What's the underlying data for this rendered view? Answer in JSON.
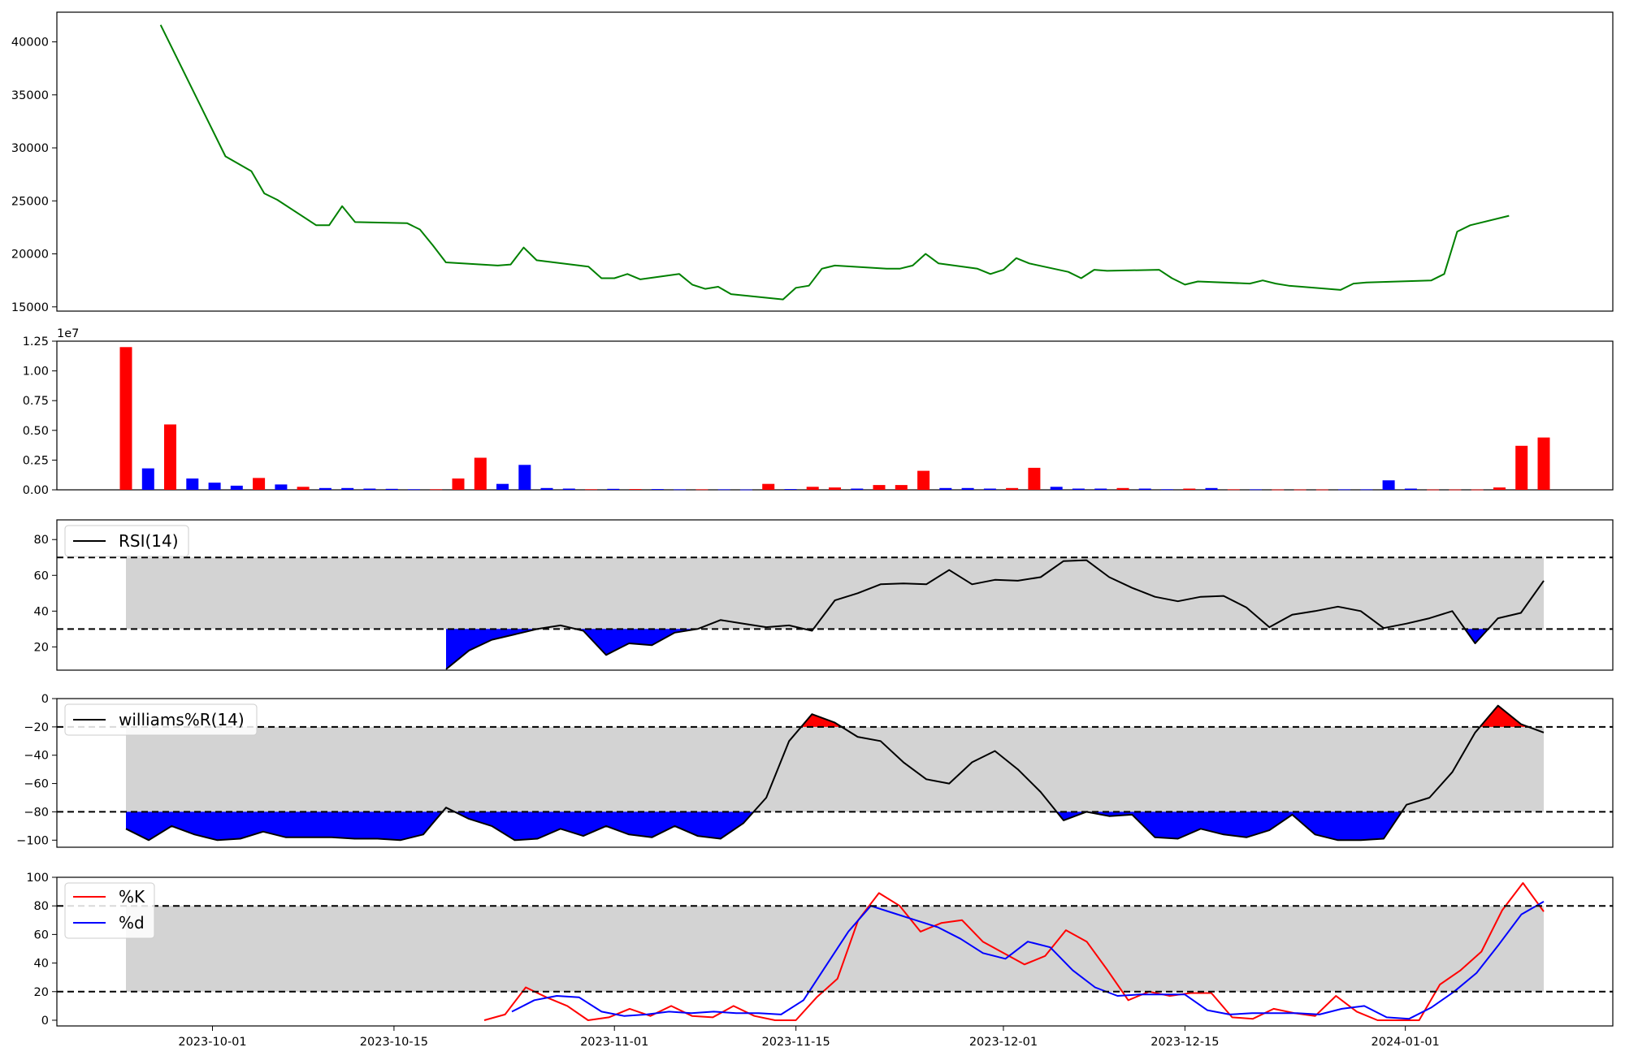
{
  "chart_data": [
    {
      "type": "line",
      "panel": "price",
      "ylim": [
        14600,
        42800
      ],
      "yticks": [
        "15000",
        "20000",
        "25000",
        "30000",
        "35000",
        "40000"
      ],
      "ytick_values": [
        15000,
        20000,
        25000,
        30000,
        35000,
        40000
      ],
      "grid": false,
      "colors": {
        "line": "#008000"
      },
      "x": [
        "2023-09-27",
        "2023-10-02",
        "2023-10-04",
        "2023-10-05",
        "2023-10-06",
        "2023-10-09",
        "2023-10-10",
        "2023-10-11",
        "2023-10-12",
        "2023-10-16",
        "2023-10-17",
        "2023-10-18",
        "2023-10-19",
        "2023-10-23",
        "2023-10-24",
        "2023-10-25",
        "2023-10-26",
        "2023-10-30",
        "2023-10-31",
        "2023-11-01",
        "2023-11-02",
        "2023-11-03",
        "2023-11-06",
        "2023-11-07",
        "2023-11-08",
        "2023-11-09",
        "2023-11-10",
        "2023-11-14",
        "2023-11-15",
        "2023-11-16",
        "2023-11-17",
        "2023-11-18",
        "2023-11-22",
        "2023-11-23",
        "2023-11-24",
        "2023-11-25",
        "2023-11-26",
        "2023-11-29",
        "2023-11-30",
        "2023-12-01",
        "2023-12-02",
        "2023-12-03",
        "2023-12-06",
        "2023-12-07",
        "2023-12-08",
        "2023-12-09",
        "2023-12-13",
        "2023-12-14",
        "2023-12-15",
        "2023-12-16",
        "2023-12-20",
        "2023-12-21",
        "2023-12-22",
        "2023-12-23",
        "2023-12-24",
        "2023-12-27",
        "2023-12-28",
        "2023-12-29",
        "2024-01-03",
        "2024-01-04",
        "2024-01-05",
        "2024-01-06",
        "2024-01-09"
      ],
      "series": [
        {
          "values": [
            41600,
            29200,
            27800,
            25700,
            25100,
            22700,
            22700,
            24500,
            23000,
            22900,
            22300,
            20800,
            19200,
            18900,
            19000,
            20600,
            19400,
            18800,
            17700,
            17700,
            18100,
            17600,
            18100,
            17100,
            16700,
            16900,
            16200,
            15700,
            16800,
            17000,
            18600,
            18900,
            18600,
            18600,
            18900,
            20000,
            19100,
            18600,
            18100,
            18500,
            19600,
            19100,
            18300,
            17700,
            18500,
            18400,
            18500,
            17700,
            17100,
            17400,
            17200,
            17500,
            17200,
            17000,
            16900,
            16600,
            17200,
            17300,
            17500,
            18100,
            22100,
            22700,
            23600
          ]
        }
      ]
    },
    {
      "type": "bar",
      "panel": "volume",
      "offset_label": "1e7",
      "ylim": [
        0,
        1.25
      ],
      "yticks": [
        "0.00",
        "0.25",
        "0.50",
        "0.75",
        "1.00",
        "1.25"
      ],
      "ytick_values": [
        0,
        0.25,
        0.5,
        0.75,
        1.0,
        1.25
      ],
      "colors": {
        "up": "#ff0000",
        "down": "#0000ff"
      },
      "bars": [
        {
          "x": "2023-09-27",
          "v": 1.2,
          "c": "red"
        },
        {
          "x": "2023-09-28",
          "v": 0.18,
          "c": "blue"
        },
        {
          "x": "2023-09-29",
          "v": 0.55,
          "c": "red"
        },
        {
          "x": "2023-09-30",
          "v": 0.095,
          "c": "blue"
        },
        {
          "x": "2023-10-01",
          "v": 0.06,
          "c": "blue"
        },
        {
          "x": "2023-10-02",
          "v": 0.035,
          "c": "blue"
        },
        {
          "x": "2023-10-03",
          "v": 0.1,
          "c": "red"
        },
        {
          "x": "2023-10-04",
          "v": 0.045,
          "c": "blue"
        },
        {
          "x": "2023-10-05",
          "v": 0.025,
          "c": "red"
        },
        {
          "x": "2023-10-06",
          "v": 0.015,
          "c": "blue"
        },
        {
          "x": "2023-10-07",
          "v": 0.015,
          "c": "blue"
        },
        {
          "x": "2023-10-08",
          "v": 0.01,
          "c": "blue"
        },
        {
          "x": "2023-10-09",
          "v": 0.008,
          "c": "blue"
        },
        {
          "x": "2023-10-10",
          "v": 0.005,
          "c": "blue"
        },
        {
          "x": "2023-10-11",
          "v": 0.005,
          "c": "red"
        },
        {
          "x": "2023-10-12",
          "v": 0.095,
          "c": "red"
        },
        {
          "x": "2023-10-13",
          "v": 0.27,
          "c": "red"
        },
        {
          "x": "2023-10-14",
          "v": 0.05,
          "c": "blue"
        },
        {
          "x": "2023-10-15",
          "v": 0.21,
          "c": "blue"
        },
        {
          "x": "2023-10-16",
          "v": 0.015,
          "c": "blue"
        },
        {
          "x": "2023-10-17",
          "v": 0.01,
          "c": "blue"
        },
        {
          "x": "2023-10-18",
          "v": 0.005,
          "c": "red"
        },
        {
          "x": "2023-10-19",
          "v": 0.008,
          "c": "blue"
        },
        {
          "x": "2023-10-20",
          "v": 0.006,
          "c": "red"
        },
        {
          "x": "2023-10-21",
          "v": 0.006,
          "c": "blue"
        },
        {
          "x": "2023-10-22",
          "v": 0.004,
          "c": "blue"
        },
        {
          "x": "2023-10-23",
          "v": 0.004,
          "c": "red"
        },
        {
          "x": "2023-10-24",
          "v": 0.004,
          "c": "blue"
        },
        {
          "x": "2023-10-25",
          "v": 0.003,
          "c": "blue"
        },
        {
          "x": "2023-10-26",
          "v": 0.05,
          "c": "red"
        },
        {
          "x": "2023-10-27",
          "v": 0.006,
          "c": "blue"
        },
        {
          "x": "2023-10-28",
          "v": 0.025,
          "c": "red"
        },
        {
          "x": "2023-10-29",
          "v": 0.02,
          "c": "red"
        },
        {
          "x": "2023-10-30",
          "v": 0.01,
          "c": "blue"
        },
        {
          "x": "2023-10-31",
          "v": 0.04,
          "c": "red"
        },
        {
          "x": "2023-11-01",
          "v": 0.04,
          "c": "red"
        },
        {
          "x": "2023-11-02",
          "v": 0.16,
          "c": "red"
        },
        {
          "x": "2023-11-03",
          "v": 0.015,
          "c": "blue"
        },
        {
          "x": "2023-11-04",
          "v": 0.015,
          "c": "blue"
        },
        {
          "x": "2023-11-05",
          "v": 0.01,
          "c": "blue"
        },
        {
          "x": "2023-11-06",
          "v": 0.015,
          "c": "red"
        },
        {
          "x": "2023-11-07",
          "v": 0.185,
          "c": "red"
        },
        {
          "x": "2023-11-08",
          "v": 0.025,
          "c": "blue"
        },
        {
          "x": "2023-11-09",
          "v": 0.01,
          "c": "blue"
        },
        {
          "x": "2023-11-10",
          "v": 0.01,
          "c": "blue"
        },
        {
          "x": "2023-11-11",
          "v": 0.015,
          "c": "red"
        },
        {
          "x": "2023-11-12",
          "v": 0.01,
          "c": "blue"
        },
        {
          "x": "2023-11-13",
          "v": 0.005,
          "c": "blue"
        },
        {
          "x": "2023-11-14",
          "v": 0.01,
          "c": "red"
        },
        {
          "x": "2023-11-15",
          "v": 0.015,
          "c": "blue"
        },
        {
          "x": "2023-11-16",
          "v": 0.004,
          "c": "red"
        },
        {
          "x": "2023-11-17",
          "v": 0.004,
          "c": "blue"
        },
        {
          "x": "2023-11-18",
          "v": 0.003,
          "c": "red"
        },
        {
          "x": "2023-11-19",
          "v": 0.003,
          "c": "red"
        },
        {
          "x": "2023-11-20",
          "v": 0.003,
          "c": "red"
        },
        {
          "x": "2023-11-21",
          "v": 0.004,
          "c": "blue"
        },
        {
          "x": "2023-11-22",
          "v": 0.004,
          "c": "blue"
        },
        {
          "x": "2023-11-23",
          "v": 0.08,
          "c": "blue"
        },
        {
          "x": "2023-11-24",
          "v": 0.01,
          "c": "blue"
        },
        {
          "x": "2023-11-25",
          "v": 0.003,
          "c": "red"
        },
        {
          "x": "2023-11-26",
          "v": 0.003,
          "c": "red"
        },
        {
          "x": "2023-11-27",
          "v": 0.003,
          "c": "red"
        },
        {
          "x": "2023-11-28",
          "v": 0.02,
          "c": "red"
        },
        {
          "x": "2023-11-29",
          "v": 0.37,
          "c": "red"
        },
        {
          "x": "2023-11-30",
          "v": 0.44,
          "c": "red"
        }
      ]
    },
    {
      "type": "line",
      "panel": "rsi",
      "ylim": [
        7,
        91
      ],
      "yticks": [
        "20",
        "40",
        "60",
        "80"
      ],
      "ytick_values": [
        20,
        40,
        60,
        80
      ],
      "hlines": [
        70,
        30
      ],
      "band": [
        30,
        70
      ],
      "legend": {
        "position": "upper-left",
        "entries": [
          "RSI(14)"
        ]
      },
      "colors": {
        "line": "#000000",
        "band": "#d3d3d3",
        "overbought_fill": "#ff0000",
        "oversold_fill": "#0000ff"
      },
      "series": [
        {
          "name": "RSI(14)",
          "x": [
            0,
            1,
            2,
            3,
            4,
            5,
            6,
            7,
            8,
            9,
            10,
            11,
            12,
            13,
            14,
            15,
            16,
            17,
            18,
            19,
            20,
            21,
            22,
            23,
            24,
            25,
            26,
            27,
            28,
            29,
            30,
            31,
            32,
            33,
            34,
            35,
            36,
            37,
            38,
            39,
            40,
            41,
            42,
            43,
            44,
            45,
            46,
            47,
            48,
            49,
            50,
            51,
            52,
            53,
            54,
            55,
            56,
            57,
            58,
            59,
            60,
            61,
            62
          ],
          "values": [
            null,
            null,
            null,
            null,
            null,
            null,
            null,
            null,
            null,
            null,
            null,
            null,
            null,
            null,
            7.5,
            18,
            24,
            27,
            30,
            32,
            29,
            15.5,
            22,
            21,
            28,
            30,
            35,
            33,
            31,
            32,
            29,
            46,
            50,
            55,
            55.5,
            55,
            63,
            55,
            57.5,
            57,
            59,
            68,
            68.5,
            59,
            53,
            48,
            45.5,
            48,
            48.5,
            42,
            31,
            38,
            40,
            42.5,
            40,
            30.5,
            33,
            36,
            40,
            22,
            36,
            39,
            57
          ]
        }
      ]
    },
    {
      "type": "line",
      "panel": "williams",
      "ylim": [
        -105,
        0
      ],
      "yticks": [
        "−100",
        "−80",
        "−60",
        "−40",
        "−20",
        "0"
      ],
      "ytick_values": [
        -100,
        -80,
        -60,
        -40,
        -20,
        0
      ],
      "hlines": [
        -20,
        -80
      ],
      "band": [
        -80,
        -20
      ],
      "legend": {
        "position": "upper-left",
        "entries": [
          "williams%R(14)"
        ]
      },
      "colors": {
        "line": "#000000",
        "band": "#d3d3d3",
        "overbought_fill": "#ff0000",
        "oversold_fill": "#0000ff"
      },
      "series": [
        {
          "name": "williams%R(14)",
          "values": [
            -92,
            -100,
            -90,
            -96,
            -100,
            -99,
            -94,
            -98,
            -98,
            -98,
            -99,
            -99,
            -100,
            -96,
            -77,
            -85,
            -90,
            -100,
            -99,
            -92,
            -97,
            -90,
            -96,
            -98,
            -90,
            -97,
            -99,
            -88,
            -70,
            -30,
            -11,
            -17,
            -27,
            -30,
            -45,
            -57,
            -60,
            -45,
            -37,
            -50,
            -66,
            -86,
            -80,
            -83,
            -82,
            -98,
            -99,
            -92,
            -96,
            -98,
            -93,
            -82,
            -96,
            -100,
            -100,
            -99,
            -75,
            -70,
            -52,
            -24,
            -5,
            -18,
            -24
          ]
        }
      ]
    },
    {
      "type": "line",
      "panel": "stochastic",
      "ylim": [
        -4,
        100
      ],
      "yticks": [
        "0",
        "20",
        "40",
        "60",
        "80",
        "100"
      ],
      "ytick_values": [
        0,
        20,
        40,
        60,
        80,
        100
      ],
      "hlines": [
        80,
        20
      ],
      "band": [
        20,
        80
      ],
      "legend": {
        "position": "upper-left",
        "entries": [
          "%K",
          "%d"
        ]
      },
      "xticks": [
        "2023-10-01",
        "2023-10-15",
        "2023-11-01",
        "2023-11-15",
        "2023-12-01",
        "2023-12-15",
        "2024-01-01"
      ],
      "colors": {
        "band": "#d3d3d3"
      },
      "series": [
        {
          "name": "%K",
          "color": "#ff0000",
          "values": [
            0,
            4,
            23,
            16,
            10,
            0,
            2,
            8,
            3,
            10,
            3,
            2,
            10,
            3,
            0,
            0,
            16,
            29,
            70,
            89,
            80,
            62,
            68,
            70,
            55,
            47,
            39,
            45,
            63,
            55,
            35,
            14,
            20,
            17,
            19,
            19,
            2,
            1,
            8,
            5,
            3,
            17,
            6,
            0,
            0,
            0,
            25,
            35,
            48,
            77,
            96,
            76
          ]
        },
        {
          "name": "%d",
          "color": "#0000ff",
          "values": [
            6,
            14,
            17,
            16,
            6,
            3,
            4,
            6,
            5,
            6,
            5,
            5,
            4,
            14,
            38,
            62,
            80,
            75,
            70,
            65,
            57,
            47,
            43,
            55,
            51,
            35,
            23,
            17,
            18,
            18,
            18,
            7,
            4,
            5,
            5,
            5,
            4,
            8,
            10,
            2,
            1,
            9,
            20,
            33,
            53,
            74,
            83
          ]
        }
      ]
    }
  ]
}
